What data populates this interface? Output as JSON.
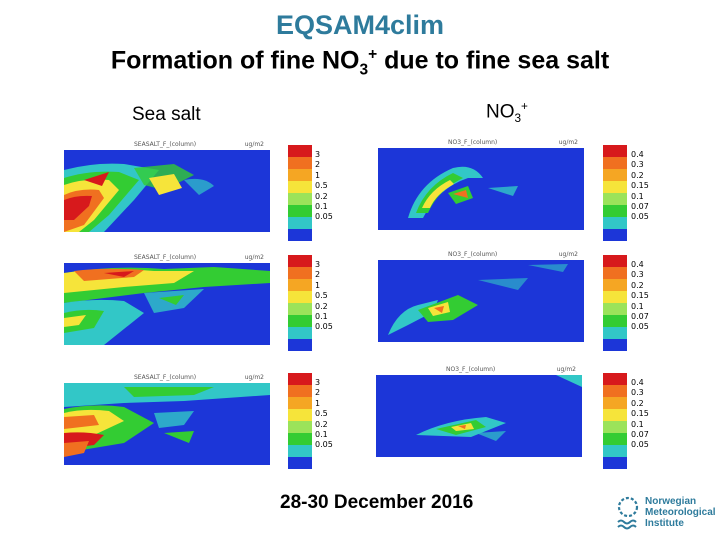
{
  "title": "EQSAM4clim",
  "subtitle_prefix": "Formation of fine NO",
  "subtitle_sub": "3",
  "subtitle_sup": "+",
  "subtitle_suffix": " due to fine sea salt",
  "left_label": "Sea salt",
  "right_label_base": "NO",
  "right_label_sub": "3",
  "right_label_sup": "+",
  "map_headers": {
    "sea_salt": "SEASALT_F_(column)",
    "no3": "NO3_F_(column)",
    "units": "ug/m2"
  },
  "legend_colors": [
    "#d7191c",
    "#f07020",
    "#f5a623",
    "#f6e43a",
    "#9be35a",
    "#33cc33",
    "#32c7c7",
    "#1c36d8"
  ],
  "sea_salt_ticks": [
    "3",
    "2",
    "1",
    "0.5",
    "0.2",
    "0.1",
    "0.05"
  ],
  "no3_ticks": [
    "0.4",
    "0.3",
    "0.2",
    "0.15",
    "0.1",
    "0.07",
    "0.05"
  ],
  "footer_dates": "28-30 December 2016",
  "logo": {
    "line1": "Norwegian",
    "line2": "Meteorological",
    "line3": "Institute"
  }
}
